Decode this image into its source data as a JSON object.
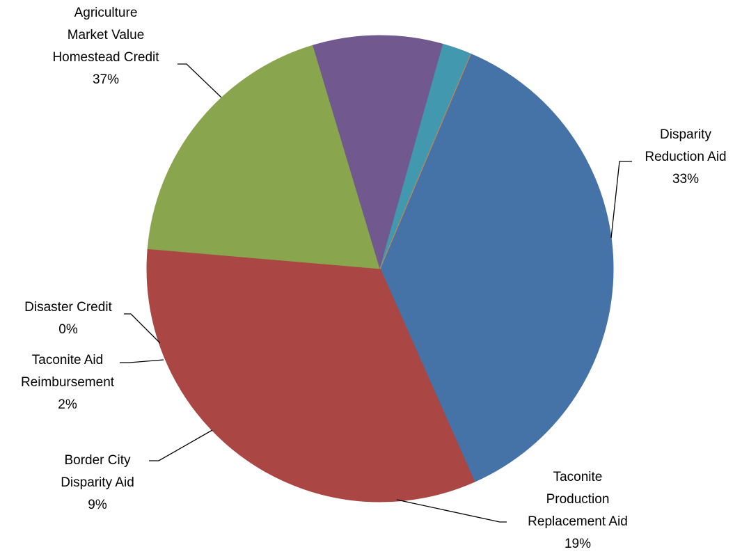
{
  "chart_data": {
    "type": "pie",
    "categories": [
      "Agriculture\nMarket Value\nHomestead Credit",
      "Disparity\nReduction Aid",
      "Taconite\nProduction\nReplacement Aid",
      "Border City\nDisparity Aid",
      "Taconite Aid\nReimbursement",
      "Disaster Credit"
    ],
    "values": [
      37,
      33,
      19,
      9,
      2,
      0
    ],
    "value_labels": [
      "37%",
      "33%",
      "19%",
      "9%",
      "2%",
      "0%"
    ],
    "colors": [
      "#4572a7",
      "#aa4643",
      "#89a54e",
      "#71588f",
      "#4198af",
      "#db843d"
    ]
  }
}
